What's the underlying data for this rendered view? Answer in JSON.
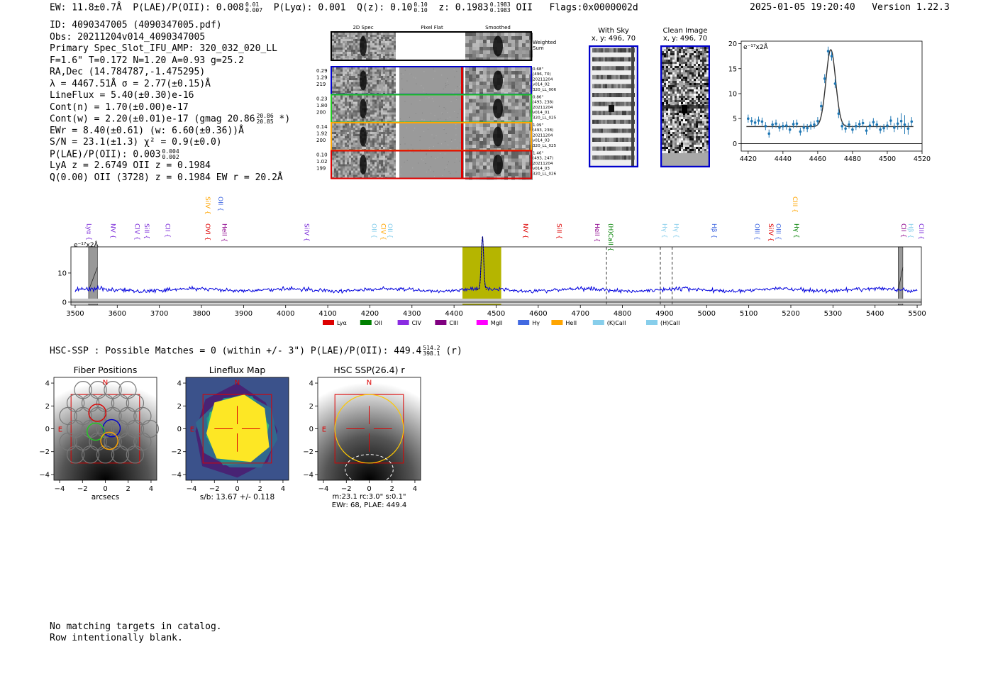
{
  "header": {
    "ew_label": "EW: 11.8±0.7Å",
    "plae_label": "P(LAE)/P(OII): 0.008",
    "plae_sup": "0.01",
    "plae_sub": "0.007",
    "plya_label": "P(Lyα): 0.001",
    "qz_label": "Q(z): 0.10",
    "qz_sup": "0.10",
    "qz_sub": "0.10",
    "z_label": "z: 0.1983",
    "z_sup": "0.1983",
    "z_sub": "0.1983",
    "z_line": "OII",
    "flags": "Flags:0x0000002d",
    "datetime": "2025-01-05 19:20:40",
    "version": "Version 1.22.3"
  },
  "info": {
    "id": "ID: 4090347005 (4090347005.pdf)",
    "obs": "Obs: 20211204v014_4090347005",
    "primary": "Primary Spec_Slot_IFU_AMP: 320_032_020_LL",
    "params": "F=1.6\"  T=0.172  N=1.20  A=0.93  g=25.2",
    "radec": "RA,Dec (14.784787,-1.475295)",
    "lambda": "λ = 4467.51Å  σ = 2.77(±0.15)Å",
    "lineflux": "LineFlux = 5.40(±0.30)e-16",
    "contn": "Cont(n) = 1.70(±0.00)e-17",
    "contw": "Cont(w) = 2.20(±0.01)e-17 (gmag 20.86",
    "gmag_sup": "20.86",
    "gmag_sub": "20.85",
    "gmag_end": "*)",
    "ewr": "EWr = 8.40(±0.61) (w: 6.60(±0.36))Å",
    "sn": "S/N = 23.1(±1.3)  χ² = 0.9(±0.0)",
    "plae": "P(LAE)/P(OII): 0.003",
    "plae_sup": "0.004",
    "plae_sub": "0.002",
    "lya": "LyA z = 2.6749  OII z = 0.1984",
    "q": "Q(0.00) OII (3728) z = 0.1984  EW r = 20.2Å"
  },
  "spec2d": {
    "col_titles": [
      "2D Spec",
      "Pixel Flat",
      "Smoothed"
    ],
    "weighted_label": "Weighted Sum",
    "rows": [
      {
        "left": [
          "0.29",
          "1.29",
          "219"
        ],
        "right": [
          "0.68\"",
          "(496, 70)",
          "20211204",
          "v014_02",
          "320_LL_006"
        ],
        "color": "#0000cc"
      },
      {
        "left": [
          "0.23",
          "1.80",
          "200"
        ],
        "right": [
          "0.86\"",
          "(493, 238)",
          "20211204",
          "v014_01",
          "320_LL_025"
        ],
        "color": "#22cc22"
      },
      {
        "left": [
          "0.14",
          "1.92",
          "200"
        ],
        "right": [
          "1.09\"",
          "(493, 238)",
          "20211204",
          "v014_03",
          "320_LL_025"
        ],
        "color": "#ffa500"
      },
      {
        "left": [
          "0.10",
          "1.02",
          "199"
        ],
        "right": [
          "1.46\"",
          "(493, 247)",
          "20211204",
          "v014_03",
          "320_LL_026"
        ],
        "color": "#dd0000"
      }
    ]
  },
  "cutouts": {
    "with_sky_title": "With Sky",
    "with_sky_xy": "x, y: 496, 70",
    "clean_title": "Clean Image",
    "clean_xy": "x, y: 496, 70"
  },
  "hsc": {
    "line": "HSC-SSP : Possible Matches = 0 (within +/- 3\")  P(LAE)/P(OII): 449.4",
    "sup": "514.2",
    "sub": "398.1",
    "band": "(r)"
  },
  "footer": {
    "line1": "No matching targets in catalog.",
    "line2": "Row intentionally blank."
  },
  "colors": {
    "blue": "#0000cc",
    "green": "#22cc22",
    "orange": "#ffa500",
    "red": "#dd0000",
    "spec_blue": "#0000dd",
    "fit_point": "#1f77b4",
    "highlight": "#b5b500"
  },
  "chart_data": [
    {
      "id": "line-fit",
      "type": "scatter",
      "title": "",
      "unit_label": "e⁻¹⁷x2Å",
      "xlabel": "",
      "ylabel": "",
      "xlim": [
        4416,
        4520
      ],
      "ylim": [
        -1.5,
        20.5
      ],
      "xticks": [
        4420,
        4440,
        4460,
        4480,
        4500,
        4520
      ],
      "yticks": [
        0,
        5,
        10,
        15,
        20
      ],
      "points_x": [
        4420,
        4422,
        4424,
        4426,
        4428,
        4430,
        4432,
        4434,
        4436,
        4438,
        4440,
        4442,
        4444,
        4446,
        4448,
        4450,
        4452,
        4454,
        4456,
        4458,
        4460,
        4462,
        4464,
        4466,
        4468,
        4470,
        4472,
        4474,
        4476,
        4478,
        4480,
        4482,
        4484,
        4486,
        4488,
        4490,
        4492,
        4494,
        4496,
        4498,
        4500,
        4502,
        4504,
        4506,
        4508,
        4510,
        4512,
        4514
      ],
      "points_y": [
        5.0,
        4.5,
        4.2,
        4.6,
        4.4,
        3.5,
        2.0,
        3.8,
        4.0,
        3.2,
        3.5,
        3.6,
        2.8,
        3.9,
        4.0,
        2.4,
        3.2,
        3.1,
        3.6,
        3.8,
        4.5,
        7.5,
        13.0,
        18.5,
        17.5,
        12.0,
        6.0,
        3.5,
        3.0,
        3.8,
        2.8,
        3.5,
        3.9,
        4.1,
        2.6,
        3.6,
        4.3,
        3.8,
        2.8,
        3.1,
        3.6,
        4.6,
        3.2,
        4.0,
        4.5,
        3.8,
        3.0,
        4.4
      ],
      "points_err": [
        0.8,
        0.8,
        0.8,
        0.8,
        0.8,
        0.8,
        0.8,
        0.8,
        0.8,
        0.8,
        0.8,
        0.8,
        0.8,
        0.8,
        0.8,
        0.8,
        0.8,
        0.8,
        0.8,
        0.8,
        0.8,
        0.9,
        0.9,
        0.9,
        0.9,
        0.9,
        0.9,
        0.8,
        0.8,
        0.8,
        0.8,
        0.8,
        0.8,
        0.8,
        0.8,
        0.8,
        0.8,
        0.8,
        0.8,
        0.8,
        0.8,
        0.9,
        0.9,
        1.2,
        1.6,
        1.9,
        1.2,
        0.9
      ],
      "fit": {
        "continuum": 3.4,
        "amplitude": 15.4,
        "center": 4467.51,
        "sigma": 2.77
      }
    },
    {
      "id": "full-spectrum",
      "type": "line",
      "title": "",
      "unit_label": "e⁻¹⁷x2Å",
      "xlabel": "",
      "ylabel": "",
      "xlim": [
        3490,
        5510
      ],
      "ylim": [
        -1,
        19
      ],
      "xticks": [
        3500,
        3600,
        3700,
        3800,
        3900,
        4000,
        4100,
        4200,
        4300,
        4400,
        4500,
        4600,
        4700,
        4800,
        4900,
        5000,
        5100,
        5200,
        5300,
        5400,
        5500
      ],
      "yticks": [
        0,
        10
      ],
      "baseline": 4.2,
      "noise": 1.0,
      "peak": {
        "center": 4467.5,
        "height": 18.3,
        "sigma": 2.8
      },
      "highlight_range": [
        4420,
        4512
      ],
      "masked_ranges": [
        [
          3532,
          3553
        ],
        [
          5455,
          5466
        ]
      ],
      "dashed_lines": [
        4762,
        4890,
        4918
      ],
      "line_labels": [
        {
          "text": "Lyα",
          "x": 3523,
          "row": 0,
          "color": "#7a2ad8"
        },
        {
          "text": "NV",
          "x": 3580,
          "row": 0,
          "color": "#7a2ad8"
        },
        {
          "text": "CIV",
          "x": 3637,
          "row": 0,
          "color": "#7a2ad8"
        },
        {
          "text": "SiII",
          "x": 3660,
          "row": 0,
          "color": "#7a2ad8"
        },
        {
          "text": "CII",
          "x": 3710,
          "row": 0,
          "color": "#7a2ad8"
        },
        {
          "text": "SiIV",
          "x": 3805,
          "row": 1,
          "color": "#ffa500"
        },
        {
          "text": "OVI",
          "x": 3805,
          "row": 0,
          "color": "#dd0000"
        },
        {
          "text": "OII",
          "x": 3835,
          "row": 1,
          "color": "#4169e1"
        },
        {
          "text": "HeII",
          "x": 3845,
          "row": 0,
          "color": "#8b008b"
        },
        {
          "text": "SiIV",
          "x": 4040,
          "row": 0,
          "color": "#7a2ad8"
        },
        {
          "text": "OII",
          "x": 4200,
          "row": 0,
          "color": "#87ceeb"
        },
        {
          "text": "CIV",
          "x": 4222,
          "row": 0,
          "color": "#ffa500"
        },
        {
          "text": "OII",
          "x": 4238,
          "row": 0,
          "color": "#87ceeb"
        },
        {
          "text": "NV",
          "x": 4560,
          "row": 0,
          "color": "#dd0000"
        },
        {
          "text": "SiII",
          "x": 4640,
          "row": 0,
          "color": "#dd0000"
        },
        {
          "text": "HeII",
          "x": 4730,
          "row": 0,
          "color": "#8b008b"
        },
        {
          "text": "(H)CaII",
          "x": 4762,
          "row": 0,
          "color": "#008000"
        },
        {
          "text": "Hγ",
          "x": 4890,
          "row": 0,
          "color": "#87ceeb"
        },
        {
          "text": "Hγ",
          "x": 4918,
          "row": 0,
          "color": "#87ceeb"
        },
        {
          "text": "Hβ",
          "x": 5008,
          "row": 0,
          "color": "#4169e1"
        },
        {
          "text": "OIII",
          "x": 5110,
          "row": 0,
          "color": "#4169e1"
        },
        {
          "text": "SiIV",
          "x": 5143,
          "row": 0,
          "color": "#dd0000"
        },
        {
          "text": "OIII",
          "x": 5160,
          "row": 0,
          "color": "#4169e1"
        },
        {
          "text": "CIII",
          "x": 5200,
          "row": 1,
          "color": "#ffa500"
        },
        {
          "text": "Hγ",
          "x": 5203,
          "row": 0,
          "color": "#008000"
        },
        {
          "text": "CII",
          "x": 5458,
          "row": 0,
          "color": "#8b008b"
        },
        {
          "text": "Hβ",
          "x": 5475,
          "row": 0,
          "color": "#87ceeb"
        },
        {
          "text": "CIII",
          "x": 5500,
          "row": 0,
          "color": "#7a2ad8"
        }
      ],
      "legend": [
        {
          "label": "Lyα",
          "color": "#dd0000"
        },
        {
          "label": "OII",
          "color": "#008000"
        },
        {
          "label": "CIV",
          "color": "#8a2be2"
        },
        {
          "label": "CIII",
          "color": "#800080"
        },
        {
          "label": "MgII",
          "color": "#ff00ff"
        },
        {
          "label": "Hγ",
          "color": "#4169e1"
        },
        {
          "label": "HeII",
          "color": "#ffa500"
        },
        {
          "label": "(K)CaII",
          "color": "#87ceeb"
        },
        {
          "label": "(H)CaII",
          "color": "#87ceeb"
        }
      ]
    },
    {
      "id": "fiber-positions",
      "type": "image",
      "title": "Fiber Positions",
      "xlabel": "arcsecs",
      "xlim": [
        -4.5,
        4.5
      ],
      "ylim": [
        -4.5,
        4.5
      ],
      "xticks": [
        -4,
        -2,
        0,
        2,
        4
      ],
      "yticks": [
        -4,
        -2,
        0,
        2,
        4
      ],
      "north_label": "N",
      "east_label": "E",
      "fibers_gray": [
        [
          -2.6,
          0
        ],
        [
          -1.3,
          0
        ],
        [
          0,
          0
        ],
        [
          1.3,
          0
        ],
        [
          2.6,
          0
        ],
        [
          3.9,
          0
        ],
        [
          -3.25,
          1.12
        ],
        [
          -1.95,
          1.12
        ],
        [
          -0.65,
          1.12
        ],
        [
          0.65,
          1.12
        ],
        [
          1.95,
          1.12
        ],
        [
          3.25,
          1.12
        ],
        [
          -2.6,
          2.25
        ],
        [
          -1.3,
          2.25
        ],
        [
          0,
          2.25
        ],
        [
          1.3,
          2.25
        ],
        [
          2.6,
          2.25
        ],
        [
          -3.25,
          -1.12
        ],
        [
          -1.95,
          -1.12
        ],
        [
          -0.65,
          -1.12
        ],
        [
          0.65,
          -1.12
        ],
        [
          1.95,
          -1.12
        ],
        [
          3.25,
          -1.12
        ],
        [
          -2.6,
          -2.25
        ],
        [
          -1.3,
          -2.25
        ],
        [
          0,
          -2.25
        ],
        [
          1.3,
          -2.25
        ],
        [
          2.6,
          -2.25
        ],
        [
          -1.95,
          3.4
        ],
        [
          -0.65,
          3.4
        ],
        [
          0.65,
          3.4
        ],
        [
          1.95,
          3.4
        ]
      ],
      "fibers_colored": [
        {
          "x": -0.7,
          "y": 1.4,
          "color": "#dd0000"
        },
        {
          "x": 0.55,
          "y": 0.05,
          "color": "#0000cc"
        },
        {
          "x": -0.85,
          "y": -0.25,
          "color": "#22cc22"
        },
        {
          "x": 0.35,
          "y": -1.05,
          "color": "#ffa500"
        }
      ]
    },
    {
      "id": "lineflux-map",
      "type": "heatmap",
      "title": "Lineflux Map",
      "xlabel": "s/b: 13.67 +/- 0.118",
      "xlim": [
        -4.5,
        4.5
      ],
      "ylim": [
        -4.5,
        4.5
      ],
      "xticks": [
        -4,
        -2,
        0,
        2,
        4
      ],
      "yticks": [
        -4,
        -2,
        0,
        2,
        4
      ],
      "north_label": "N",
      "east_label": "E"
    },
    {
      "id": "hsc-ssp",
      "type": "image",
      "title": "HSC SSP(26.4) r",
      "xlabel": "m:23.1 rc:3.0\"  s:0.1\"",
      "xlabel2": "EWr: 68, PLAE: 449.4",
      "xlim": [
        -4.5,
        4.5
      ],
      "ylim": [
        -4.5,
        4.5
      ],
      "xticks": [
        -4,
        -2,
        0,
        2,
        4
      ],
      "yticks": [
        -4,
        -2,
        0,
        2,
        4
      ],
      "north_label": "N",
      "east_label": "E",
      "aperture_radius": 3.0
    }
  ]
}
